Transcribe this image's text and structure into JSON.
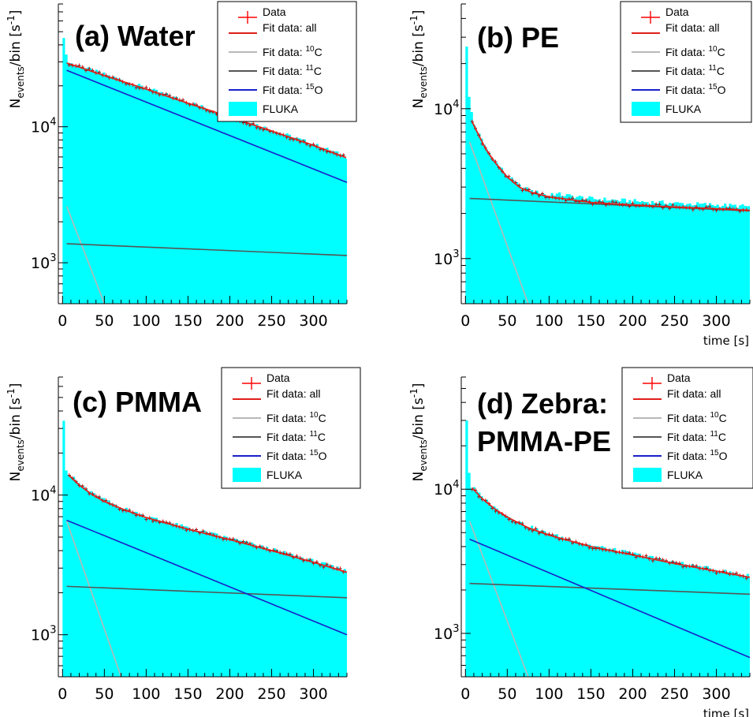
{
  "figure": {
    "ylabel_base": "N",
    "ylabel_sub": "events",
    "ylabel_rest": "/bin [s",
    "ylabel_sup": "-1",
    "ylabel_close": "]",
    "xlabel": "time [s]"
  },
  "legend": {
    "data": "Data",
    "all": "Fit data: all",
    "c10_prefix": "Fit data: ",
    "c10_sup": "10",
    "c10_el": "C",
    "c11_prefix": "Fit data: ",
    "c11_sup": "11",
    "c11_el": "C",
    "o15_prefix": "Fit data: ",
    "o15_sup": "15",
    "o15_el": "O",
    "fluka": "FLUKA"
  },
  "colors": {
    "fluka": "#00ffff",
    "data": "#ff0000",
    "fit_all": "#e0201a",
    "c10": "#b8b8b8",
    "c11": "#555555",
    "o15": "#1a20c8"
  },
  "chart_data": [
    {
      "type": "line",
      "title": "(a) Water",
      "xlabel": "",
      "ylabel": "Nevents/bin [s-1]",
      "xlim": [
        -5,
        340
      ],
      "ylim": [
        500,
        80000
      ],
      "yscale": "log",
      "xticks": [
        "0",
        "50",
        "100",
        "150",
        "200",
        "250",
        "300"
      ],
      "yticks": [
        "10^3",
        "10^4"
      ],
      "series": [
        {
          "name": "Fit data: all",
          "x": [
            5,
            25,
            50,
            100,
            150,
            200,
            250,
            300,
            340
          ],
          "y": [
            29400,
            26800,
            23800,
            18900,
            14900,
            11800,
            9300,
            7300,
            5900
          ]
        },
        {
          "name": "Fit data: 10C",
          "x": [
            5,
            50
          ],
          "y": [
            2600,
            500
          ]
        },
        {
          "name": "Fit data: 11C",
          "x": [
            5,
            340
          ],
          "y": [
            1380,
            1130
          ]
        },
        {
          "name": "Fit data: 15O",
          "x": [
            5,
            340
          ],
          "y": [
            26000,
            3900
          ]
        }
      ],
      "fluka_peak": [
        45000,
        34000,
        29500
      ],
      "data_scatter": 0.03
    },
    {
      "type": "line",
      "title": "(b) PE",
      "xlabel": "time [s]",
      "ylabel": "Nevents/bin [s-1]",
      "xlim": [
        -5,
        340
      ],
      "ylim": [
        500,
        50000
      ],
      "yscale": "log",
      "xticks": [
        "0",
        "50",
        "100",
        "150",
        "200",
        "250",
        "300"
      ],
      "yticks": [
        "10^3",
        "10^4"
      ],
      "series": [
        {
          "name": "Fit data: all",
          "x": [
            8,
            15,
            25,
            35,
            50,
            65,
            80,
            100,
            150,
            200,
            250,
            300,
            340
          ],
          "y": [
            8200,
            6800,
            5300,
            4400,
            3500,
            2980,
            2750,
            2580,
            2370,
            2280,
            2210,
            2150,
            2100
          ]
        },
        {
          "name": "Fit data: 10C",
          "x": [
            5,
            75
          ],
          "y": [
            6000,
            500
          ]
        },
        {
          "name": "Fit data: 11C",
          "x": [
            5,
            340
          ],
          "y": [
            2520,
            2080
          ]
        }
      ],
      "fluka_peak": [
        26000,
        12000,
        9500
      ],
      "data_scatter": 0.03
    },
    {
      "type": "line",
      "title": "(c) PMMA",
      "xlabel": "",
      "ylabel": "Nevents/bin [s-1]",
      "xlim": [
        -5,
        340
      ],
      "ylim": [
        500,
        70000
      ],
      "yscale": "log",
      "xticks": [
        "0",
        "50",
        "100",
        "150",
        "200",
        "250",
        "300"
      ],
      "yticks": [
        "10^3",
        "10^4"
      ],
      "series": [
        {
          "name": "Fit data: all",
          "x": [
            8,
            20,
            35,
            50,
            75,
            100,
            150,
            200,
            250,
            300,
            340
          ],
          "y": [
            13800,
            11800,
            10100,
            9000,
            7800,
            6900,
            5700,
            4800,
            4000,
            3300,
            2800
          ]
        },
        {
          "name": "Fit data: 10C",
          "x": [
            5,
            70
          ],
          "y": [
            6500,
            500
          ]
        },
        {
          "name": "Fit data: 11C",
          "x": [
            5,
            340
          ],
          "y": [
            2220,
            1840
          ]
        },
        {
          "name": "Fit data: 15O",
          "x": [
            5,
            340
          ],
          "y": [
            6600,
            1000
          ]
        }
      ],
      "fluka_peak": [
        34000,
        15000,
        13800
      ],
      "data_scatter": 0.03
    },
    {
      "type": "line",
      "title": "(d) Zebra: PMMA-PE",
      "xlabel": "time [s]",
      "ylabel": "Nevents/bin [s-1]",
      "xlim": [
        -5,
        340
      ],
      "ylim": [
        500,
        60000
      ],
      "yscale": "log",
      "xticks": [
        "0",
        "50",
        "100",
        "150",
        "200",
        "250",
        "300"
      ],
      "yticks": [
        "10^3",
        "10^4"
      ],
      "series": [
        {
          "name": "Fit data: all",
          "x": [
            8,
            20,
            35,
            50,
            75,
            100,
            150,
            200,
            250,
            300,
            340
          ],
          "y": [
            10200,
            8600,
            7300,
            6400,
            5400,
            4800,
            4000,
            3500,
            3050,
            2700,
            2450
          ]
        },
        {
          "name": "Fit data: 10C",
          "x": [
            5,
            75
          ],
          "y": [
            6000,
            500
          ]
        },
        {
          "name": "Fit data: 11C",
          "x": [
            5,
            340
          ],
          "y": [
            2220,
            1870
          ]
        },
        {
          "name": "Fit data: 15O",
          "x": [
            5,
            340
          ],
          "y": [
            4500,
            680
          ]
        }
      ],
      "fluka_peak": [
        30000,
        13000,
        10200
      ],
      "data_scatter": 0.03
    }
  ]
}
